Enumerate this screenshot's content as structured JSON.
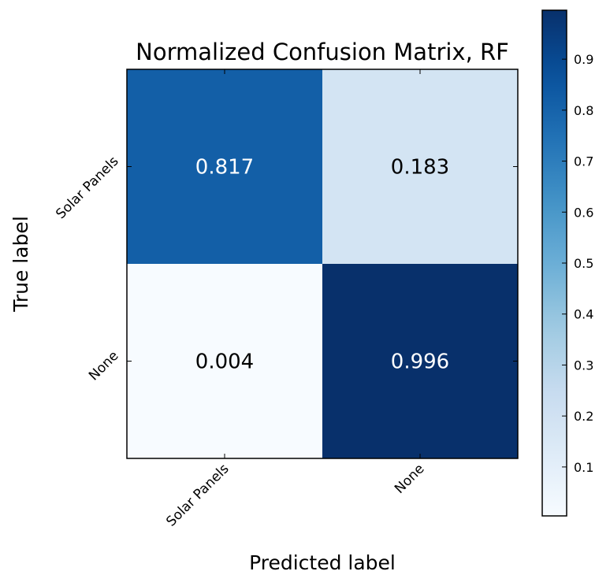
{
  "chart_data": {
    "type": "heatmap",
    "title": "Normalized Confusion Matrix, RF",
    "xlabel": "Predicted label",
    "ylabel": "True label",
    "x_categories": [
      "Solar Panels",
      "None"
    ],
    "y_categories": [
      "Solar Panels",
      "None"
    ],
    "values": [
      [
        0.817,
        0.183
      ],
      [
        0.004,
        0.996
      ]
    ],
    "cell_labels": [
      [
        "0.817",
        "0.183"
      ],
      [
        "0.004",
        "0.996"
      ]
    ],
    "colormap": "Blues",
    "colors": {
      "low": "#f7fbff",
      "high": "#08306b",
      "text_on_dark": "#ffffff",
      "text_on_light": "#000000"
    },
    "colorbar": {
      "range": [
        0.004,
        0.996
      ],
      "ticks": [
        0.1,
        0.2,
        0.3,
        0.4,
        0.5,
        0.6,
        0.7,
        0.8,
        0.9
      ],
      "tick_labels": [
        "0.1",
        "0.2",
        "0.3",
        "0.4",
        "0.5",
        "0.6",
        "0.7",
        "0.8",
        "0.9"
      ],
      "orientation": "vertical",
      "placement": "right"
    },
    "grid": false
  }
}
